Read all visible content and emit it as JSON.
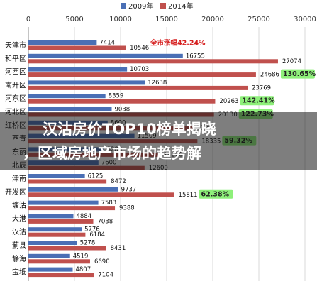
{
  "chart_data": {
    "type": "bar",
    "orientation": "horizontal",
    "title_lines": [
      "汉沽房价TOP10榜单揭晓",
      "，区域房地产市场的趋势解"
    ],
    "categories": [
      "天津市",
      "和平区",
      "河西区",
      "南开区",
      "河东区",
      "河北区",
      "红桥区",
      "西青",
      "东丽",
      "北辰",
      "津南",
      "开发区",
      "塘沽",
      "大港",
      "汉沽",
      "蓟县",
      "静海",
      "宝坻"
    ],
    "series": [
      {
        "name": "2009年",
        "color": "#4a6fb5",
        "values": [
          7414,
          16755,
          10703,
          12638,
          8359,
          9038,
          8600,
          11509,
          8200,
          7600,
          6125,
          9737,
          7583,
          4884,
          5776,
          5278,
          4519,
          4807
        ]
      },
      {
        "name": "2014年",
        "color": "#c0504d",
        "values": [
          10546,
          27074,
          24686,
          23769,
          20263,
          20130,
          17800,
          18335,
          14200,
          12600,
          8472,
          15811,
          9388,
          7038,
          6184,
          8431,
          6690,
          7104
        ]
      }
    ],
    "growth_labels": [
      "全市涨幅42.24%",
      null,
      "130.65%",
      null,
      "142.41%",
      "122.73%",
      null,
      "59.32%",
      null,
      null,
      null,
      "62.38%",
      null,
      null,
      null,
      null,
      null,
      null
    ],
    "xlim": [
      0,
      30000
    ],
    "xticks": [
      0,
      5000,
      10000,
      15000,
      20000,
      25000,
      30000
    ],
    "grid": true
  }
}
